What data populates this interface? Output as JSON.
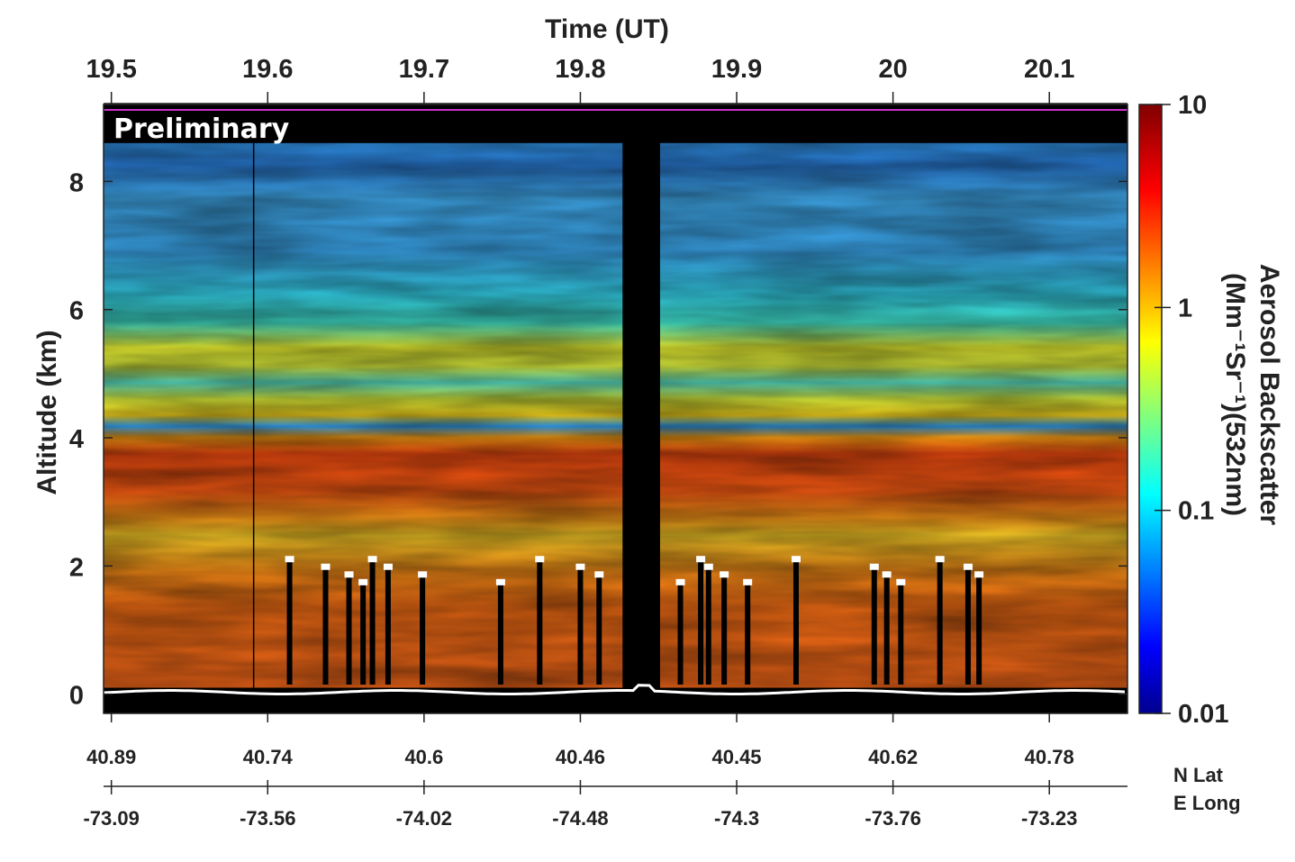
{
  "chart_data": {
    "type": "heatmap",
    "title": "",
    "xlabel_top": "Time (UT)",
    "ylabel": "Altitude (km)",
    "x_time_ticks": [
      "19.5",
      "19.6",
      "19.7",
      "19.8",
      "19.9",
      "20",
      "20.1"
    ],
    "x_time_values": [
      19.5,
      19.6,
      19.7,
      19.8,
      19.9,
      20.0,
      20.1
    ],
    "xlim_time": [
      19.495,
      20.15
    ],
    "y_ticks": [
      "0",
      "2",
      "4",
      "6",
      "8"
    ],
    "y_values": [
      0,
      2,
      4,
      6,
      8
    ],
    "ylim": [
      -0.3,
      9.2
    ],
    "lat_label": "N Lat",
    "lat_ticks": [
      "40.89",
      "40.74",
      "40.6",
      "40.46",
      "40.45",
      "40.62",
      "40.78"
    ],
    "lon_label": "E Long",
    "lon_ticks": [
      "-73.09",
      "-73.56",
      "-74.02",
      "-74.48",
      "-74.3",
      "-73.76",
      "-73.23"
    ],
    "colorbar": {
      "label_line1": "Aerosol Backscatter",
      "label_line2": "(Mm⁻¹Sr⁻¹)(532nm)",
      "scale": "log",
      "ticks": [
        "10",
        "1",
        "0.1",
        "0.01"
      ],
      "values": [
        10,
        1,
        0.1,
        0.01
      ],
      "colormap": "jet"
    },
    "annotation": "Preliminary",
    "data_gap_time": [
      19.827,
      19.851
    ],
    "layers": [
      {
        "bottom_km": 0.1,
        "top_km": 1.5,
        "backscatter": 4.0
      },
      {
        "bottom_km": 1.5,
        "top_km": 2.6,
        "backscatter": 2.2
      },
      {
        "bottom_km": 2.6,
        "top_km": 4.1,
        "backscatter": 4.5
      },
      {
        "bottom_km": 4.1,
        "top_km": 4.5,
        "backscatter": 0.2
      },
      {
        "bottom_km": 4.5,
        "top_km": 5.5,
        "backscatter": 0.6
      },
      {
        "bottom_km": 5.5,
        "top_km": 6.6,
        "backscatter": 0.25
      },
      {
        "bottom_km": 6.6,
        "top_km": 8.6,
        "backscatter": 0.07
      }
    ]
  },
  "colors": {
    "background": "#ffffff",
    "axis": "#222222",
    "no_data": "#000000",
    "surface_line": "#ffffff",
    "top_line": "#cc33cc"
  }
}
